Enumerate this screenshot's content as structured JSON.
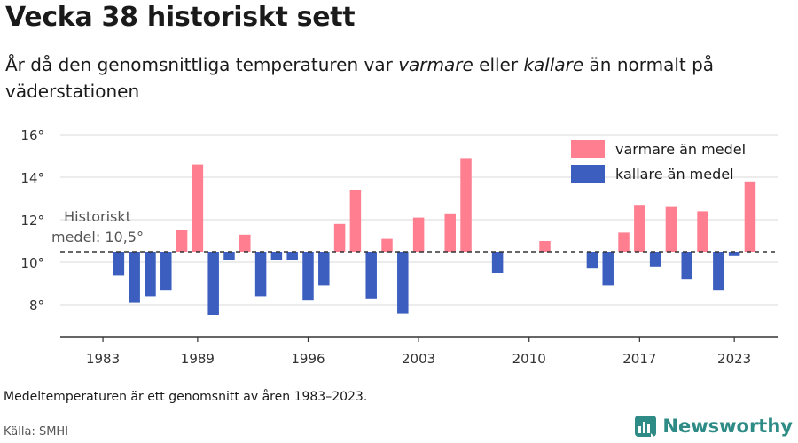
{
  "title": "Vecka 38 historiskt sett",
  "subtitle": {
    "part1": "År då den genomsnittliga temperaturen var ",
    "warm_word": "varmare",
    "part2": " eller ",
    "cold_word": "kallare",
    "part3": " än normalt på väderstationen"
  },
  "footnote": "Medeltemperaturen är ett genomsnitt av åren 1983–2023.",
  "source": "Källa: SMHI",
  "brand": "Newsworthy",
  "colors": {
    "warm": "#ff7f91",
    "cold": "#3c5fbf",
    "mean_line": "#333333",
    "grid": "#e6e6e6",
    "brand": "#2e8b85"
  },
  "chart_data": {
    "type": "bar",
    "mean": 10.5,
    "mean_label_line1": "Historiskt",
    "mean_label_line2": "medel: 10,5°",
    "ylim": [
      6.5,
      16.5
    ],
    "yticks": [
      8,
      10,
      12,
      14,
      16
    ],
    "ytick_labels": [
      "8°",
      "10°",
      "12°",
      "14°",
      "16°"
    ],
    "xticks": [
      1983,
      1989,
      1996,
      2003,
      2010,
      2017,
      2023
    ],
    "xlim": [
      1980.3,
      2025.8
    ],
    "legend": {
      "position": "top-right",
      "warm_label": "varmare än medel",
      "cold_label": "kallare än medel"
    },
    "series": [
      {
        "year": 1984,
        "value": 9.4
      },
      {
        "year": 1985,
        "value": 8.1
      },
      {
        "year": 1986,
        "value": 8.4
      },
      {
        "year": 1987,
        "value": 8.7
      },
      {
        "year": 1988,
        "value": 11.5
      },
      {
        "year": 1989,
        "value": 14.6
      },
      {
        "year": 1990,
        "value": 7.5
      },
      {
        "year": 1991,
        "value": 10.1
      },
      {
        "year": 1992,
        "value": 11.3
      },
      {
        "year": 1993,
        "value": 8.4
      },
      {
        "year": 1994,
        "value": 10.1
      },
      {
        "year": 1995,
        "value": 10.1
      },
      {
        "year": 1996,
        "value": 8.2
      },
      {
        "year": 1997,
        "value": 8.9
      },
      {
        "year": 1998,
        "value": 11.8
      },
      {
        "year": 1999,
        "value": 13.4
      },
      {
        "year": 2000,
        "value": 8.3
      },
      {
        "year": 2001,
        "value": 11.1
      },
      {
        "year": 2002,
        "value": 7.6
      },
      {
        "year": 2003,
        "value": 12.1
      },
      {
        "year": 2005,
        "value": 12.3
      },
      {
        "year": 2006,
        "value": 14.9
      },
      {
        "year": 2008,
        "value": 9.5
      },
      {
        "year": 2011,
        "value": 11.0
      },
      {
        "year": 2014,
        "value": 9.7
      },
      {
        "year": 2015,
        "value": 8.9
      },
      {
        "year": 2016,
        "value": 11.4
      },
      {
        "year": 2017,
        "value": 12.7
      },
      {
        "year": 2018,
        "value": 9.8
      },
      {
        "year": 2019,
        "value": 12.6
      },
      {
        "year": 2020,
        "value": 9.2
      },
      {
        "year": 2021,
        "value": 12.4
      },
      {
        "year": 2022,
        "value": 8.7
      },
      {
        "year": 2023,
        "value": 10.3
      },
      {
        "year": 2024,
        "value": 13.8
      }
    ]
  }
}
